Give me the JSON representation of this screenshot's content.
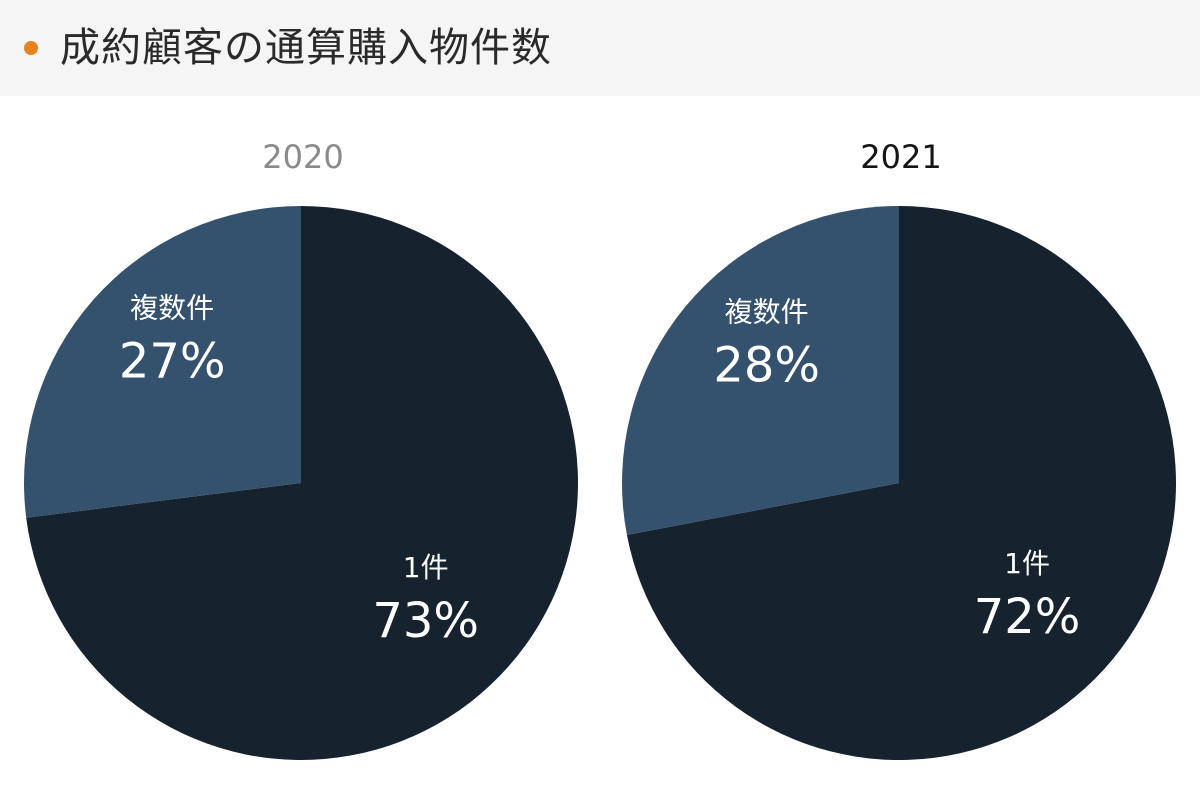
{
  "header": {
    "title": "成約顧客の通算購入物件数",
    "bullet_color": "#e8811f"
  },
  "chart_data": [
    {
      "type": "pie",
      "title": "2020",
      "slices": [
        {
          "label": "1件",
          "value": 73,
          "value_label": "73%",
          "color": "#16222e"
        },
        {
          "label": "複数件",
          "value": 27,
          "value_label": "27%",
          "color": "#34516d"
        }
      ]
    },
    {
      "type": "pie",
      "title": "2021",
      "slices": [
        {
          "label": "1件",
          "value": 72,
          "value_label": "72%",
          "color": "#16222e"
        },
        {
          "label": "複数件",
          "value": 28,
          "value_label": "28%",
          "color": "#34516d"
        }
      ]
    }
  ]
}
